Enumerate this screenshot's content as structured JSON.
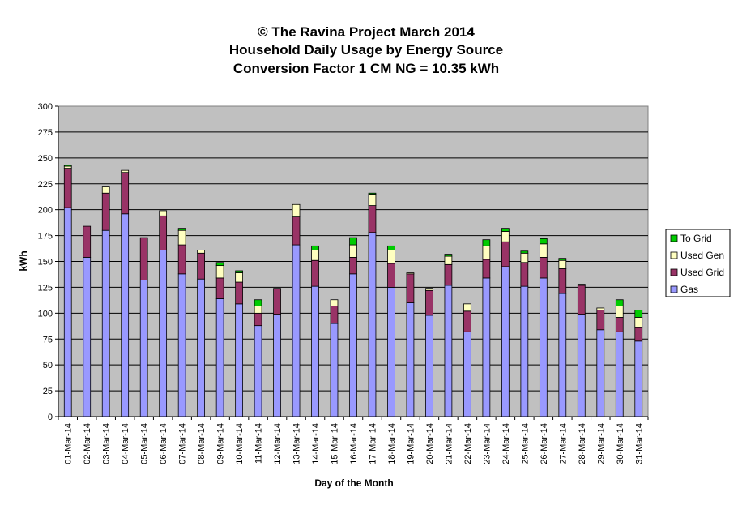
{
  "chart_data": {
    "type": "bar",
    "stacked": true,
    "title": [
      "© The Ravina Project March 2014",
      "Household Daily Usage by Energy Source",
      "Conversion Factor 1 CM NG = 10.35 kWh"
    ],
    "xlabel": "Day of the Month",
    "ylabel": "kWh",
    "ylim": [
      0,
      300
    ],
    "yticks": [
      0,
      25,
      50,
      75,
      100,
      125,
      150,
      175,
      200,
      225,
      250,
      275,
      300
    ],
    "grid": true,
    "legend_position": "right",
    "categories": [
      "01-Mar-14",
      "02-Mar-14",
      "03-Mar-14",
      "04-Mar-14",
      "05-Mar-14",
      "06-Mar-14",
      "07-Mar-14",
      "08-Mar-14",
      "09-Mar-14",
      "10-Mar-14",
      "11-Mar-14",
      "12-Mar-14",
      "13-Mar-14",
      "14-Mar-14",
      "15-Mar-14",
      "16-Mar-14",
      "17-Mar-14",
      "18-Mar-14",
      "19-Mar-14",
      "20-Mar-14",
      "21-Mar-14",
      "22-Mar-14",
      "23-Mar-14",
      "24-Mar-14",
      "25-Mar-14",
      "26-Mar-14",
      "27-Mar-14",
      "28-Mar-14",
      "29-Mar-14",
      "30-Mar-14",
      "31-Mar-14"
    ],
    "series": [
      {
        "name": "Gas",
        "color": "#9999ff",
        "values": [
          202,
          154,
          180,
          196,
          132,
          161,
          138,
          133,
          114,
          109,
          88,
          99,
          166,
          126,
          90,
          138,
          178,
          125,
          110,
          98,
          127,
          82,
          134,
          145,
          126,
          134,
          119,
          99,
          84,
          82,
          73
        ]
      },
      {
        "name": "Used Grid",
        "color": "#993366",
        "values": [
          38,
          30,
          36,
          40,
          41,
          33,
          28,
          25,
          20,
          21,
          12,
          25,
          27,
          25,
          17,
          16,
          26,
          23,
          28,
          24,
          20,
          20,
          18,
          24,
          23,
          20,
          24,
          28,
          19,
          14,
          13
        ]
      },
      {
        "name": "Used Gen",
        "color": "#ffffc0",
        "values": [
          2,
          0,
          6,
          2,
          0,
          5,
          14,
          3,
          12,
          9,
          7,
          0,
          12,
          10,
          6,
          12,
          11,
          13,
          1,
          2,
          8,
          7,
          13,
          10,
          9,
          13,
          8,
          1,
          2,
          11,
          10
        ]
      },
      {
        "name": "To Grid",
        "color": "#00cc00",
        "values": [
          1,
          0,
          0,
          0,
          0,
          0,
          2,
          0,
          3,
          2,
          6,
          0,
          0,
          4,
          0,
          7,
          1,
          4,
          0,
          0,
          2,
          0,
          6,
          3,
          2,
          5,
          2,
          0,
          0,
          6,
          7
        ]
      }
    ],
    "legend_order": [
      "To Grid",
      "Used Gen",
      "Used Grid",
      "Gas"
    ],
    "plot_background": "#c0c0c0"
  }
}
